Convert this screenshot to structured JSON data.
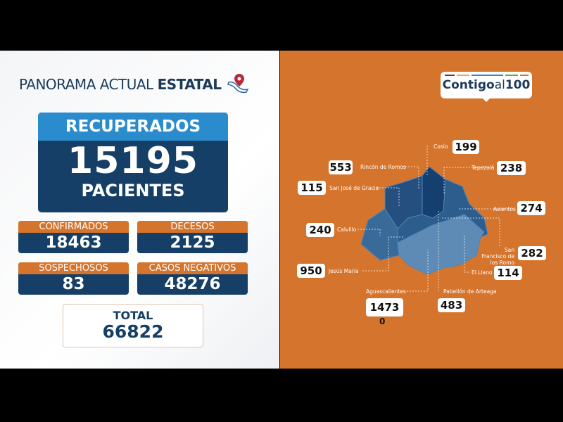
{
  "header": {
    "title_light": "PANORAMA ACTUAL",
    "title_bold": "ESTATAL",
    "icon": "mexico-map-pin-icon"
  },
  "recuperados": {
    "label": "RECUPERADOS",
    "value": "15195",
    "unit": "PACIENTES"
  },
  "stats": [
    {
      "label": "CONFIRMADOS",
      "value": "18463"
    },
    {
      "label": "DECESOS",
      "value": "2125"
    },
    {
      "label": "SOSPECHOSOS",
      "value": "83"
    },
    {
      "label": "CASOS NEGATIVOS",
      "value": "48276"
    }
  ],
  "total": {
    "label": "TOTAL",
    "value": "66822"
  },
  "logo": {
    "bold": "Contigo",
    "light": "al",
    "number": "100"
  },
  "municipios": [
    {
      "name": "Cosío",
      "value": "199"
    },
    {
      "name": "Rincón de Romos",
      "value": "553"
    },
    {
      "name": "Tepezalá",
      "value": "238"
    },
    {
      "name": "San José de Gracia",
      "value": "115"
    },
    {
      "name": "Asientos",
      "value": "274"
    },
    {
      "name": "Calvillo",
      "value": "240"
    },
    {
      "name": "San Francisco de los Romo",
      "value": "282"
    },
    {
      "name": "Jesús María",
      "value": "950"
    },
    {
      "name": "El Llano",
      "value": "114"
    },
    {
      "name": "Aguascalientes",
      "value": "1473",
      "extra": "0"
    },
    {
      "name": "Pabellón de Arteaga",
      "value": "483"
    }
  ],
  "colors": {
    "orange": "#d5742c",
    "navy": "#153f66",
    "blue": "#2a8ccc"
  }
}
